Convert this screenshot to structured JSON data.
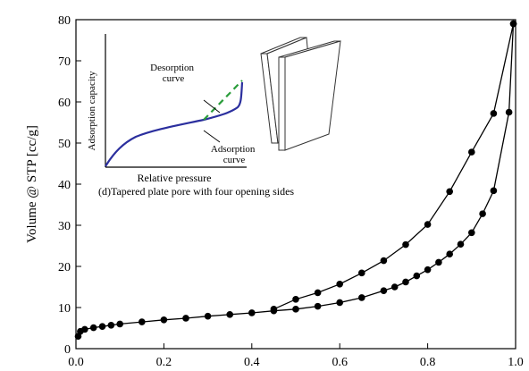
{
  "chart_data": {
    "type": "line",
    "ylabel": "Volume @ STP [cc/g]",
    "xlim": [
      0.0,
      1.0
    ],
    "ylim": [
      0,
      80
    ],
    "x_ticks": [
      "0.0",
      "0.2",
      "0.4",
      "0.6",
      "0.8",
      "1.0"
    ],
    "y_ticks": [
      "0",
      "10",
      "20",
      "30",
      "40",
      "50",
      "60",
      "70",
      "80"
    ],
    "grid": false,
    "series": [
      {
        "points": [
          [
            0.005,
            3.0
          ],
          [
            0.01,
            4.2
          ],
          [
            0.02,
            4.7
          ],
          [
            0.04,
            5.1
          ],
          [
            0.06,
            5.4
          ],
          [
            0.08,
            5.7
          ],
          [
            0.1,
            6.0
          ],
          [
            0.15,
            6.5
          ],
          [
            0.2,
            7.0
          ],
          [
            0.25,
            7.4
          ],
          [
            0.3,
            7.9
          ],
          [
            0.35,
            8.3
          ],
          [
            0.4,
            8.7
          ],
          [
            0.45,
            9.2
          ],
          [
            0.5,
            9.6
          ],
          [
            0.55,
            10.3
          ],
          [
            0.6,
            11.2
          ],
          [
            0.65,
            12.4
          ],
          [
            0.7,
            14.1
          ],
          [
            0.725,
            15.0
          ],
          [
            0.75,
            16.2
          ],
          [
            0.775,
            17.7
          ],
          [
            0.8,
            19.2
          ],
          [
            0.825,
            21.0
          ],
          [
            0.85,
            23.0
          ],
          [
            0.875,
            25.4
          ],
          [
            0.9,
            28.2
          ],
          [
            0.925,
            32.8
          ],
          [
            0.95,
            38.4
          ],
          [
            0.985,
            57.5
          ],
          [
            0.995,
            79.0
          ]
        ]
      },
      {
        "points": [
          [
            0.995,
            79.0
          ],
          [
            0.95,
            57.2
          ],
          [
            0.9,
            47.8
          ],
          [
            0.85,
            38.2
          ],
          [
            0.8,
            30.2
          ],
          [
            0.75,
            25.3
          ],
          [
            0.7,
            21.4
          ],
          [
            0.65,
            18.4
          ],
          [
            0.6,
            15.7
          ],
          [
            0.55,
            13.6
          ],
          [
            0.5,
            12.0
          ],
          [
            0.45,
            9.6
          ]
        ]
      }
    ],
    "inset": {
      "ylabel": "Adsorption capacity",
      "xlabel": "Relative pressure",
      "caption": "(d)Tapered plate pore with four opening sides",
      "desorption_label": "Desorption curve",
      "adsorption_label": "Adsorption curve",
      "adsorption_color": "#2b2f9e",
      "desorption_color": "#2a9d3b"
    }
  }
}
